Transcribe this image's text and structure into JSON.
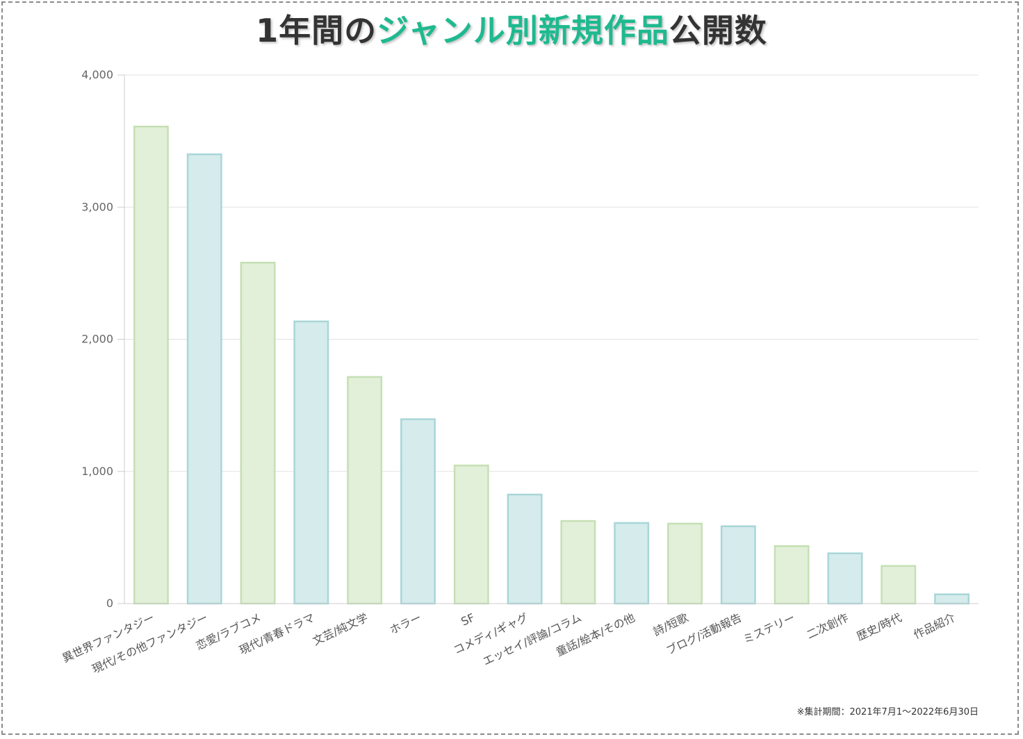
{
  "title": {
    "part1": "1年間の",
    "part2": "ジャンル別新規作品",
    "part3": "公開数"
  },
  "colors": {
    "title_text": "#333333",
    "title_accent": "#1eb98f",
    "bar_green_fill": "#e2efd9",
    "bar_green_stroke": "#c5e0b4",
    "bar_blue_fill": "#d5ebec",
    "bar_blue_stroke": "#a9d6d8",
    "grid": "#e3e3e3"
  },
  "chart_data": {
    "type": "bar",
    "title": "1年間のジャンル別新規作品公開数",
    "xlabel": "",
    "ylabel": "",
    "ylim": [
      0,
      4000
    ],
    "yticks": [
      0,
      1000,
      2000,
      3000,
      4000
    ],
    "ytick_labels": [
      "0",
      "1,000",
      "2,000",
      "3,000",
      "4,000"
    ],
    "grid": true,
    "categories": [
      "異世界ファンタジー",
      "現代/その他ファンタジー",
      "恋愛/ラブコメ",
      "現代/青春ドラマ",
      "文芸/純文学",
      "ホラー",
      "SF",
      "コメディ/ギャグ",
      "エッセイ/評論/コラム",
      "童話/絵本/その他",
      "詩/短歌",
      "ブログ/活動報告",
      "ミステリー",
      "二次創作",
      "歴史/時代",
      "作品紹介"
    ],
    "values": [
      3610,
      3400,
      2580,
      2135,
      1715,
      1395,
      1045,
      825,
      625,
      610,
      605,
      585,
      435,
      380,
      285,
      70
    ]
  },
  "footnote": "※集計期間：2021年7月1～2022年6月30日"
}
